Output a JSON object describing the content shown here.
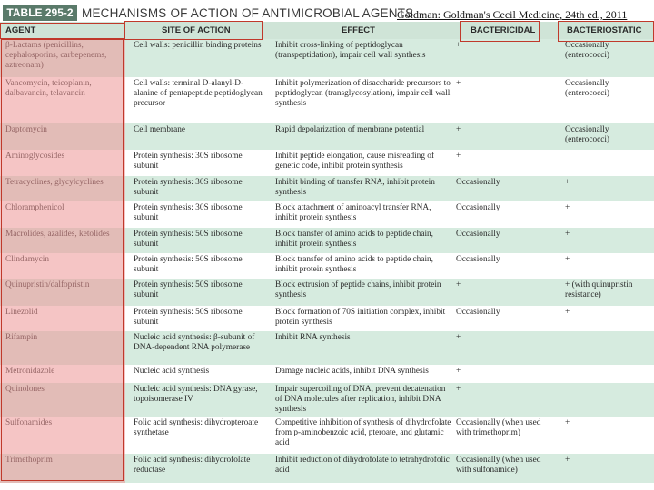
{
  "table": {
    "number": "TABLE 295-2",
    "title": "MECHANISMS OF ACTION OF ANTIMICROBIAL AGENTS",
    "citation": "Goldman: Goldman's Cecil Medicine, 24th ed., 2011"
  },
  "headers": {
    "agent": "AGENT",
    "site": "SITE OF ACTION",
    "effect": "EFFECT",
    "bactericidal": "BACTERICIDAL",
    "bacteriostatic": "BACTERIOSTATIC"
  },
  "colors": {
    "row_shade": "#d6ebdf",
    "header_bg": "#cfe4d7",
    "title_box": "#5a7a6a",
    "highlight_red": "#c0392b",
    "agent_pink": "#ec9696"
  },
  "rows": [
    {
      "agent": "β-Lactams (penicillins, cephalosporins, carbepenems, aztreonam)",
      "site": "Cell walls: penicillin binding proteins",
      "effect": "Inhibit cross-linking of peptidoglycan (transpeptidation), impair cell wall synthesis",
      "bactericidal": "+",
      "bacteriostatic": "Occasionally (enterococci)"
    },
    {
      "agent": "Vancomycin, teicoplanin, dalbavancin, telavancin",
      "site": "Cell walls: terminal D-alanyl-D-alanine of pentapeptide peptidoglycan precursor",
      "effect": "Inhibit polymerization of disaccharide precursors to peptidoglycan (transglycosylation), impair cell wall synthesis",
      "bactericidal": "+",
      "bacteriostatic": "Occasionally (enterococci)"
    },
    {
      "agent": "Daptomycin",
      "site": "Cell membrane",
      "effect": "Rapid depolarization of membrane potential",
      "bactericidal": "+",
      "bacteriostatic": "Occasionally (enterococci)"
    },
    {
      "agent": "Aminoglycosides",
      "site": "Protein synthesis: 30S ribosome subunit",
      "effect": "Inhibit peptide elongation, cause misreading of genetic code, inhibit protein synthesis",
      "bactericidal": "+",
      "bacteriostatic": ""
    },
    {
      "agent": "Tetracyclines, glycylcyclines",
      "site": "Protein synthesis: 30S ribosome subunit",
      "effect": "Inhibit binding of transfer RNA, inhibit protein synthesis",
      "bactericidal": "Occasionally",
      "bacteriostatic": "+"
    },
    {
      "agent": "Chloramphenicol",
      "site": "Protein synthesis: 30S ribosome subunit",
      "effect": "Block attachment of aminoacyl transfer RNA, inhibit protein synthesis",
      "bactericidal": "Occasionally",
      "bacteriostatic": "+"
    },
    {
      "agent": "Macrolides, azalides, ketolides",
      "site": "Protein synthesis: 50S ribosome subunit",
      "effect": "Block transfer of amino acids to peptide chain, inhibit protein synthesis",
      "bactericidal": "Occasionally",
      "bacteriostatic": "+"
    },
    {
      "agent": "Clindamycin",
      "site": "Protein synthesis: 50S ribosome subunit",
      "effect": "Block transfer of amino acids to peptide chain, inhibit protein synthesis",
      "bactericidal": "Occasionally",
      "bacteriostatic": "+"
    },
    {
      "agent": "Quinupristin/dalfopristin",
      "site": "Protein synthesis: 50S ribosome subunit",
      "effect": "Block extrusion of peptide chains, inhibit protein synthesis",
      "bactericidal": "+",
      "bacteriostatic": "+ (with quinupristin resistance)"
    },
    {
      "agent": "Linezolid",
      "site": "Protein synthesis: 50S ribosome subunit",
      "effect": "Block formation of 70S initiation complex, inhibit protein synthesis",
      "bactericidal": "Occasionally",
      "bacteriostatic": "+"
    },
    {
      "agent": "Rifampin",
      "site": "Nucleic acid synthesis: β-subunit of DNA-dependent RNA polymerase",
      "effect": "Inhibit RNA synthesis",
      "bactericidal": "+",
      "bacteriostatic": ""
    },
    {
      "agent": "Metronidazole",
      "site": "Nucleic acid synthesis",
      "effect": "Damage nucleic acids, inhibit DNA synthesis",
      "bactericidal": "+",
      "bacteriostatic": ""
    },
    {
      "agent": "Quinolones",
      "site": "Nucleic acid synthesis: DNA gyrase, topoisomerase IV",
      "effect": "Impair supercoiling of DNA, prevent decatenation of DNA molecules after replication, inhibit DNA synthesis",
      "bactericidal": "+",
      "bacteriostatic": ""
    },
    {
      "agent": "Sulfonamides",
      "site": "Folic acid synthesis: dihydropteroate synthetase",
      "effect": "Competitive inhibition of synthesis of dihydrofolate from p-aminobenzoic acid, pteroate, and glutamic acid",
      "bactericidal": "Occasionally (when used with trimethoprim)",
      "bacteriostatic": "+"
    },
    {
      "agent": "Trimethoprim",
      "site": "Folic acid synthesis: dihydrofolate reductase",
      "effect": "Inhibit reduction of dihydrofolate to tetrahydrofolic acid",
      "bactericidal": "Occasionally (when used with sulfonamide)",
      "bacteriostatic": "+"
    }
  ]
}
